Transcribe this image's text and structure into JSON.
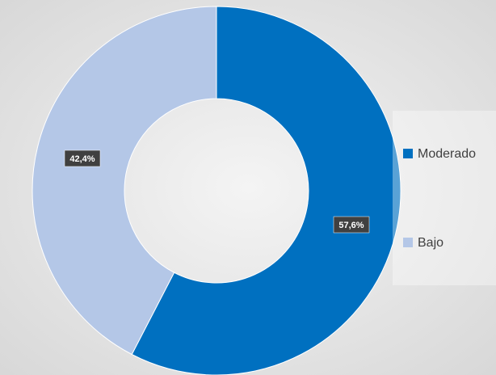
{
  "chart_data": {
    "type": "donut",
    "categories": [
      "Moderado",
      "Bajo"
    ],
    "values": [
      57.6,
      42.4
    ],
    "value_labels": [
      "57,6%",
      "42,4%"
    ],
    "colors": [
      "#0070c0",
      "#b4c7e7"
    ],
    "legend": "right"
  }
}
